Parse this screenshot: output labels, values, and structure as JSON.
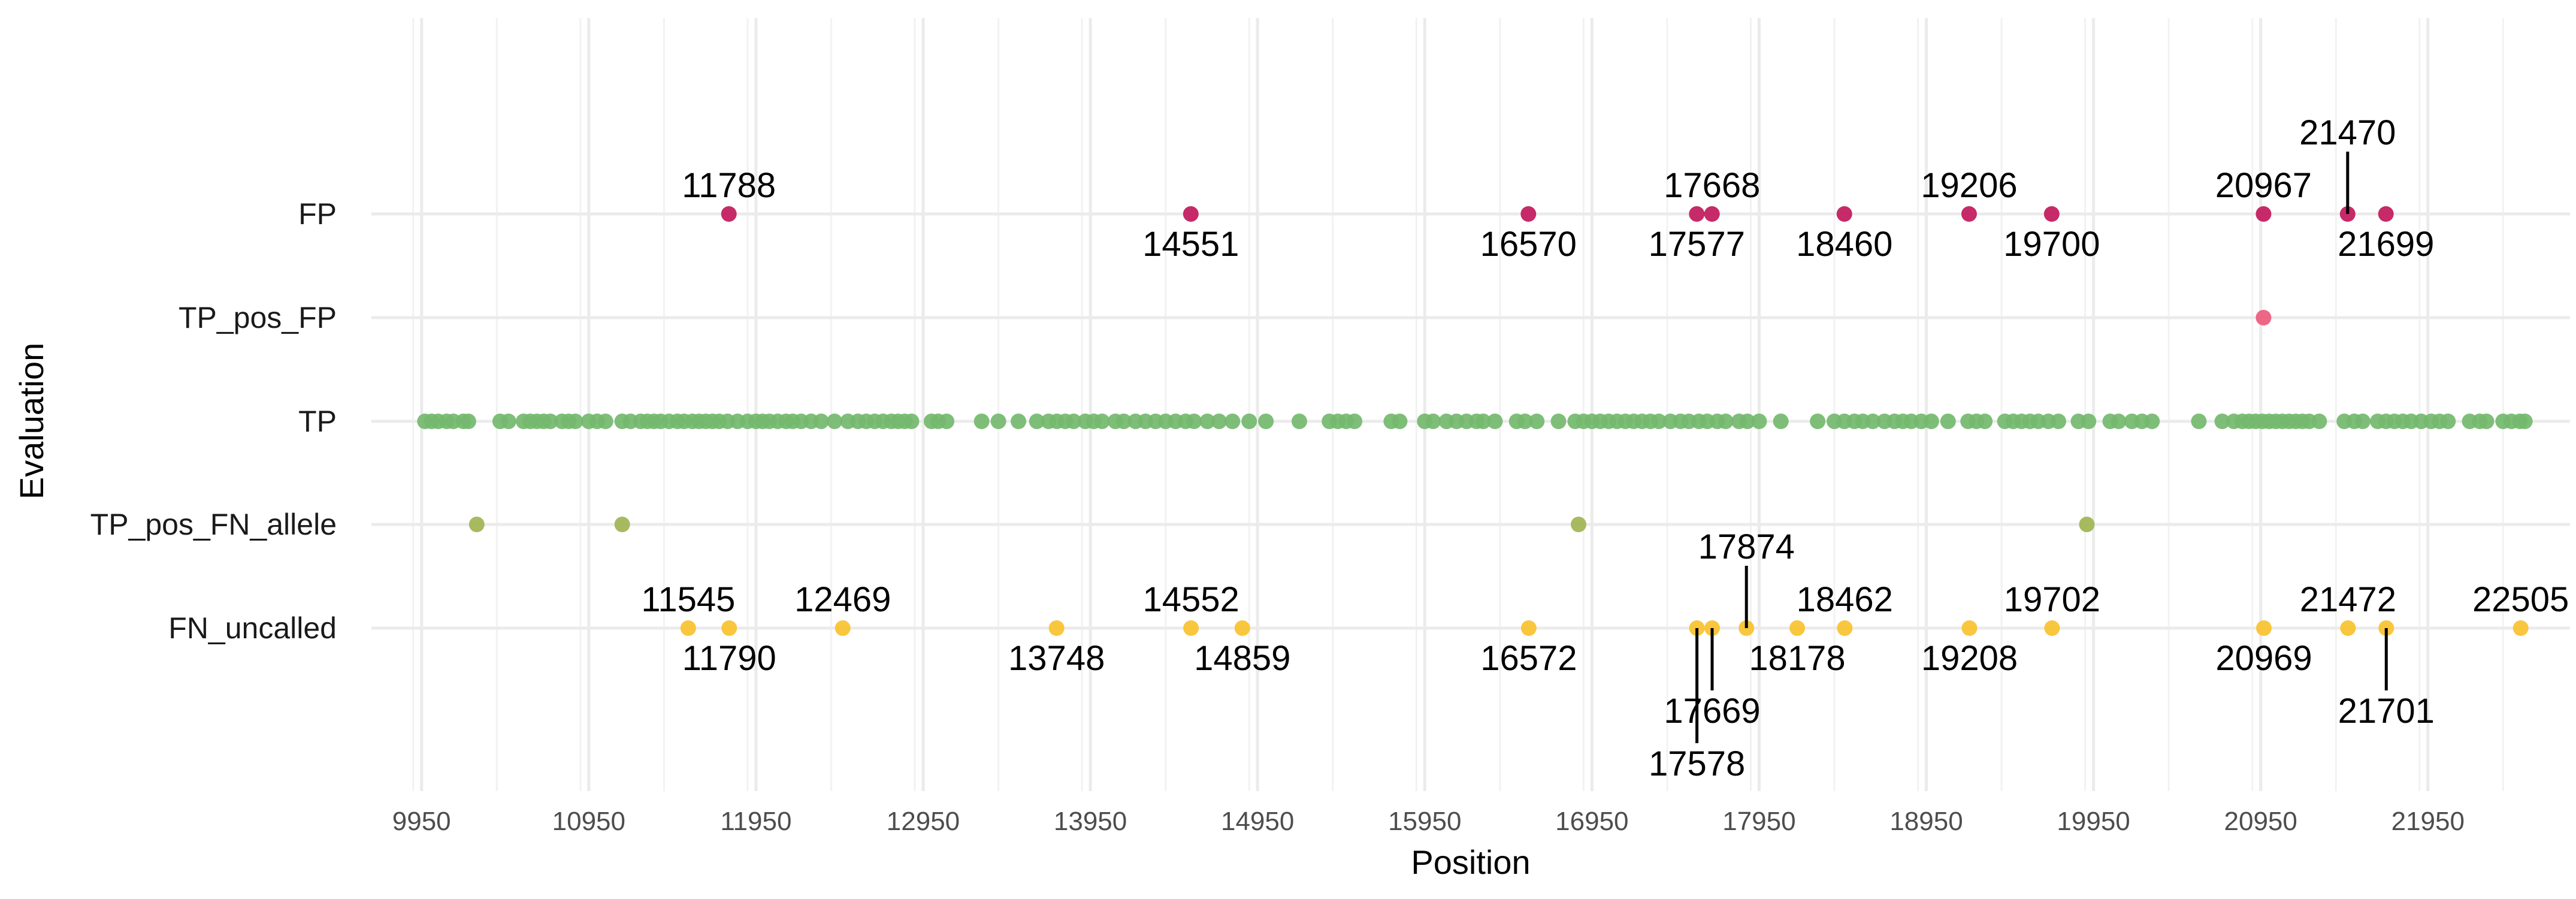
{
  "chart_data": {
    "type": "scatter",
    "title": "",
    "xlabel": "Position",
    "ylabel": "Evaluation",
    "xlim": [
      9650,
      22800
    ],
    "x_ticks": [
      9950,
      10950,
      11950,
      12950,
      13950,
      14950,
      15950,
      16950,
      17950,
      18950,
      19950,
      20950,
      21950
    ],
    "categories": [
      "FN_uncalled",
      "TP_pos_FN_allele",
      "TP",
      "TP_pos_FP",
      "FP"
    ],
    "grid": true,
    "legend": "none",
    "series": [
      {
        "category": "FP",
        "color": "#C2185B",
        "x": [
          11788,
          14551,
          16570,
          17577,
          17668,
          18460,
          19206,
          19700,
          20967,
          21470,
          21699
        ]
      },
      {
        "category": "TP_pos_FP",
        "color": "#EC5A7C",
        "x": [
          20967
        ]
      },
      {
        "category": "TP",
        "color": "#74B96E",
        "x": [
          9970,
          10010,
          10050,
          10100,
          10140,
          10200,
          10230,
          10420,
          10470,
          10560,
          10600,
          10640,
          10680,
          10720,
          10790,
          10830,
          10870,
          10950,
          11000,
          11050,
          11150,
          11200,
          11260,
          11300,
          11340,
          11380,
          11430,
          11480,
          11520,
          11570,
          11610,
          11650,
          11690,
          11730,
          11780,
          11840,
          11900,
          11950,
          11990,
          12030,
          12080,
          12130,
          12170,
          12220,
          12280,
          12340,
          12420,
          12500,
          12560,
          12610,
          12660,
          12710,
          12760,
          12800,
          12840,
          12880,
          13000,
          13040,
          13090,
          13300,
          13400,
          13520,
          13630,
          13700,
          13750,
          13800,
          13850,
          13920,
          13970,
          14020,
          14100,
          14150,
          14220,
          14280,
          14340,
          14400,
          14460,
          14520,
          14570,
          14650,
          14720,
          14800,
          14900,
          15000,
          15200,
          15380,
          15430,
          15480,
          15530,
          15750,
          15800,
          15950,
          16000,
          16080,
          16140,
          16200,
          16260,
          16300,
          16370,
          16500,
          16550,
          16620,
          16750,
          16850,
          16900,
          16950,
          17000,
          17050,
          17100,
          17150,
          17200,
          17250,
          17300,
          17350,
          17420,
          17480,
          17530,
          17590,
          17640,
          17700,
          17750,
          17830,
          17880,
          17950,
          18080,
          18300,
          18400,
          18460,
          18520,
          18570,
          18630,
          18700,
          18760,
          18810,
          18860,
          18920,
          18980,
          19080,
          19200,
          19250,
          19300,
          19420,
          19470,
          19520,
          19570,
          19620,
          19680,
          19740,
          19860,
          19920,
          20050,
          20100,
          20180,
          20240,
          20300,
          20580,
          20720,
          20790,
          20840,
          20880,
          20920,
          20960,
          21000,
          21040,
          21080,
          21120,
          21160,
          21200,
          21240,
          21300,
          21450,
          21510,
          21560,
          21650,
          21700,
          21750,
          21800,
          21850,
          21910,
          21970,
          22020,
          22070,
          22200,
          22260,
          22300,
          22400,
          22450,
          22500,
          22530
        ]
      },
      {
        "category": "TP_pos_FN_allele",
        "color": "#A0B452",
        "x": [
          10280,
          11150,
          16870,
          19910
        ]
      },
      {
        "category": "FN_uncalled",
        "color": "#F8C22C",
        "x": [
          11545,
          11790,
          12469,
          13748,
          14552,
          14859,
          16572,
          17578,
          17669,
          17874,
          18178,
          18462,
          19208,
          19702,
          20969,
          21472,
          21701,
          22505
        ]
      }
    ],
    "annotations": [
      {
        "category": "FP",
        "x": 11788,
        "label": "11788",
        "pos": "above"
      },
      {
        "category": "FP",
        "x": 14551,
        "label": "14551",
        "pos": "below"
      },
      {
        "category": "FP",
        "x": 16570,
        "label": "16570",
        "pos": "below"
      },
      {
        "category": "FP",
        "x": 17668,
        "label": "17668",
        "pos": "above"
      },
      {
        "category": "FP",
        "x": 17577,
        "label": "17577",
        "pos": "below"
      },
      {
        "category": "FP",
        "x": 18460,
        "label": "18460",
        "pos": "below"
      },
      {
        "category": "FP",
        "x": 19206,
        "label": "19206",
        "pos": "above"
      },
      {
        "category": "FP",
        "x": 19700,
        "label": "19700",
        "pos": "below"
      },
      {
        "category": "FP",
        "x": 20967,
        "label": "20967",
        "pos": "above"
      },
      {
        "category": "FP",
        "x": 21470,
        "label": "21470",
        "pos": "above",
        "leader": 1
      },
      {
        "category": "FP",
        "x": 21699,
        "label": "21699",
        "pos": "below"
      },
      {
        "category": "FN_uncalled",
        "x": 11545,
        "label": "11545",
        "pos": "above"
      },
      {
        "category": "FN_uncalled",
        "x": 11790,
        "label": "11790",
        "pos": "below"
      },
      {
        "category": "FN_uncalled",
        "x": 12469,
        "label": "12469",
        "pos": "above"
      },
      {
        "category": "FN_uncalled",
        "x": 13748,
        "label": "13748",
        "pos": "below"
      },
      {
        "category": "FN_uncalled",
        "x": 14552,
        "label": "14552",
        "pos": "above"
      },
      {
        "category": "FN_uncalled",
        "x": 14859,
        "label": "14859",
        "pos": "below"
      },
      {
        "category": "FN_uncalled",
        "x": 16572,
        "label": "16572",
        "pos": "below"
      },
      {
        "category": "FN_uncalled",
        "x": 17874,
        "label": "17874",
        "pos": "above",
        "leader": 1
      },
      {
        "category": "FN_uncalled",
        "x": 17669,
        "label": "17669",
        "pos": "below",
        "leader": 1
      },
      {
        "category": "FN_uncalled",
        "x": 17578,
        "label": "17578",
        "pos": "below",
        "leader": 2
      },
      {
        "category": "FN_uncalled",
        "x": 18178,
        "label": "18178",
        "pos": "below"
      },
      {
        "category": "FN_uncalled",
        "x": 18462,
        "label": "18462",
        "pos": "above"
      },
      {
        "category": "FN_uncalled",
        "x": 19208,
        "label": "19208",
        "pos": "below"
      },
      {
        "category": "FN_uncalled",
        "x": 19702,
        "label": "19702",
        "pos": "above"
      },
      {
        "category": "FN_uncalled",
        "x": 20969,
        "label": "20969",
        "pos": "below"
      },
      {
        "category": "FN_uncalled",
        "x": 21472,
        "label": "21472",
        "pos": "above"
      },
      {
        "category": "FN_uncalled",
        "x": 21701,
        "label": "21701",
        "pos": "below",
        "leader": 1
      },
      {
        "category": "FN_uncalled",
        "x": 22505,
        "label": "22505",
        "pos": "above"
      }
    ]
  }
}
